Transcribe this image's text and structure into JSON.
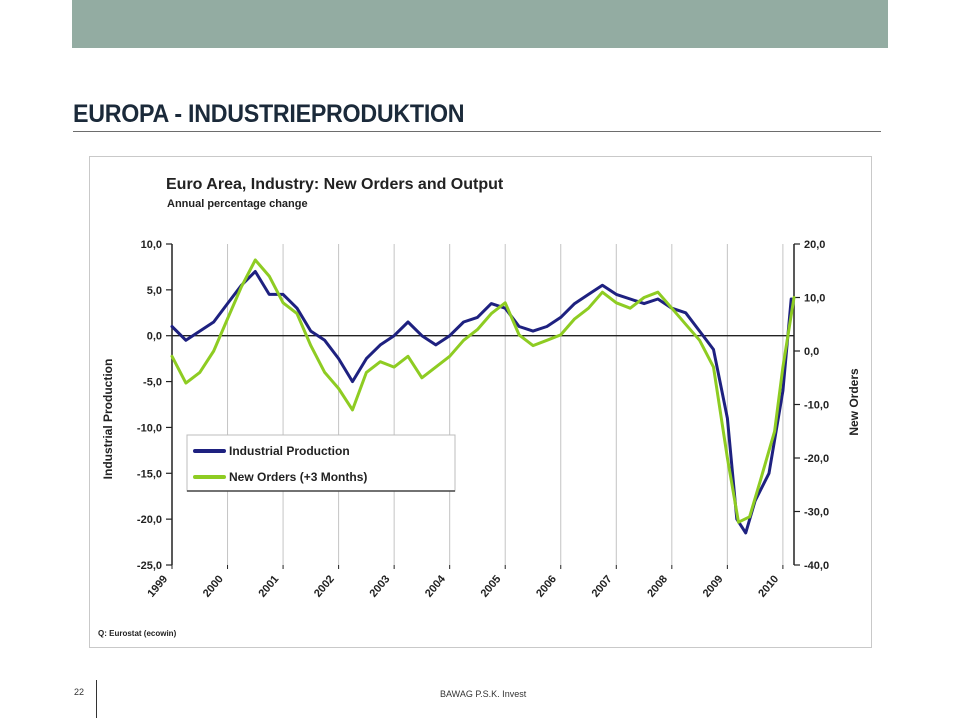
{
  "slide": {
    "title": "EUROPA - INDUSTRIEPRODUKTION",
    "page_number": "22",
    "company": "BAWAG P.S.K. Invest"
  },
  "chart_data": {
    "type": "line",
    "title": "Euro Area, Industry: New Orders and Output",
    "subtitle": "Annual percentage change",
    "source": "Q: Eurostat (ecowin)",
    "ylabel": "Industrial Production",
    "ylabel_right": "New Orders",
    "ylim": [
      -25,
      10
    ],
    "ylim_right": [
      -40,
      20
    ],
    "yticks": [
      "10,0",
      "5,0",
      "0,0",
      "-5,0",
      "-10,0",
      "-15,0",
      "-20,0",
      "-25,0"
    ],
    "yticks_right": [
      "20,0",
      "10,0",
      "0,0",
      "-10,0",
      "-20,0",
      "-30,0",
      "-40,0"
    ],
    "x_categories": [
      "1999",
      "2000",
      "2001",
      "2002",
      "2003",
      "2004",
      "2005",
      "2006",
      "2007",
      "2008",
      "2009",
      "2010"
    ],
    "xlim": [
      1999,
      2010.2
    ],
    "grid": "vertical",
    "legend": "lower-left",
    "series": [
      {
        "name": "Industrial Production",
        "axis": "left",
        "color": "#1e2180",
        "x": [
          1999.0,
          1999.25,
          1999.5,
          1999.75,
          2000.0,
          2000.25,
          2000.5,
          2000.75,
          2001.0,
          2001.25,
          2001.5,
          2001.75,
          2002.0,
          2002.25,
          2002.5,
          2002.75,
          2003.0,
          2003.25,
          2003.5,
          2003.75,
          2004.0,
          2004.25,
          2004.5,
          2004.75,
          2005.0,
          2005.25,
          2005.5,
          2005.75,
          2006.0,
          2006.25,
          2006.5,
          2006.75,
          2007.0,
          2007.25,
          2007.5,
          2007.75,
          2008.0,
          2008.25,
          2008.5,
          2008.75,
          2009.0,
          2009.17,
          2009.33,
          2009.5,
          2009.75,
          2010.0,
          2010.15
        ],
        "values": [
          1.0,
          -0.5,
          0.5,
          1.5,
          3.5,
          5.5,
          7.0,
          4.5,
          4.5,
          3.0,
          0.5,
          -0.5,
          -2.5,
          -5.0,
          -2.5,
          -1.0,
          0.0,
          1.5,
          0.0,
          -1.0,
          0.0,
          1.5,
          2.0,
          3.5,
          3.0,
          1.0,
          0.5,
          1.0,
          2.0,
          3.5,
          4.5,
          5.5,
          4.5,
          4.0,
          3.5,
          4.0,
          3.0,
          2.5,
          0.5,
          -1.5,
          -9.0,
          -20.0,
          -21.5,
          -18.0,
          -15.0,
          -6.0,
          4.0
        ]
      },
      {
        "name": "New Orders (+3 Months)",
        "axis": "right",
        "color": "#8ecc22",
        "x": [
          1999.0,
          1999.25,
          1999.5,
          1999.75,
          2000.0,
          2000.25,
          2000.5,
          2000.75,
          2001.0,
          2001.25,
          2001.5,
          2001.75,
          2002.0,
          2002.25,
          2002.5,
          2002.75,
          2003.0,
          2003.25,
          2003.5,
          2003.75,
          2004.0,
          2004.25,
          2004.5,
          2004.75,
          2005.0,
          2005.25,
          2005.5,
          2005.75,
          2006.0,
          2006.25,
          2006.5,
          2006.75,
          2007.0,
          2007.25,
          2007.5,
          2007.75,
          2008.0,
          2008.25,
          2008.5,
          2008.75,
          2009.0,
          2009.2,
          2009.4,
          2009.6,
          2009.85,
          2010.0,
          2010.2
        ],
        "values": [
          -1.0,
          -6.0,
          -4.0,
          0.0,
          6.0,
          12.0,
          17.0,
          14.0,
          9.0,
          7.0,
          1.0,
          -4.0,
          -7.0,
          -11.0,
          -4.0,
          -2.0,
          -3.0,
          -1.0,
          -5.0,
          -3.0,
          -1.0,
          2.0,
          4.0,
          7.0,
          9.0,
          3.0,
          1.0,
          2.0,
          3.0,
          6.0,
          8.0,
          11.0,
          9.0,
          8.0,
          10.0,
          11.0,
          8.0,
          5.0,
          2.0,
          -3.0,
          -20.0,
          -32.0,
          -31.0,
          -24.0,
          -15.0,
          -3.0,
          10.0
        ]
      }
    ]
  }
}
